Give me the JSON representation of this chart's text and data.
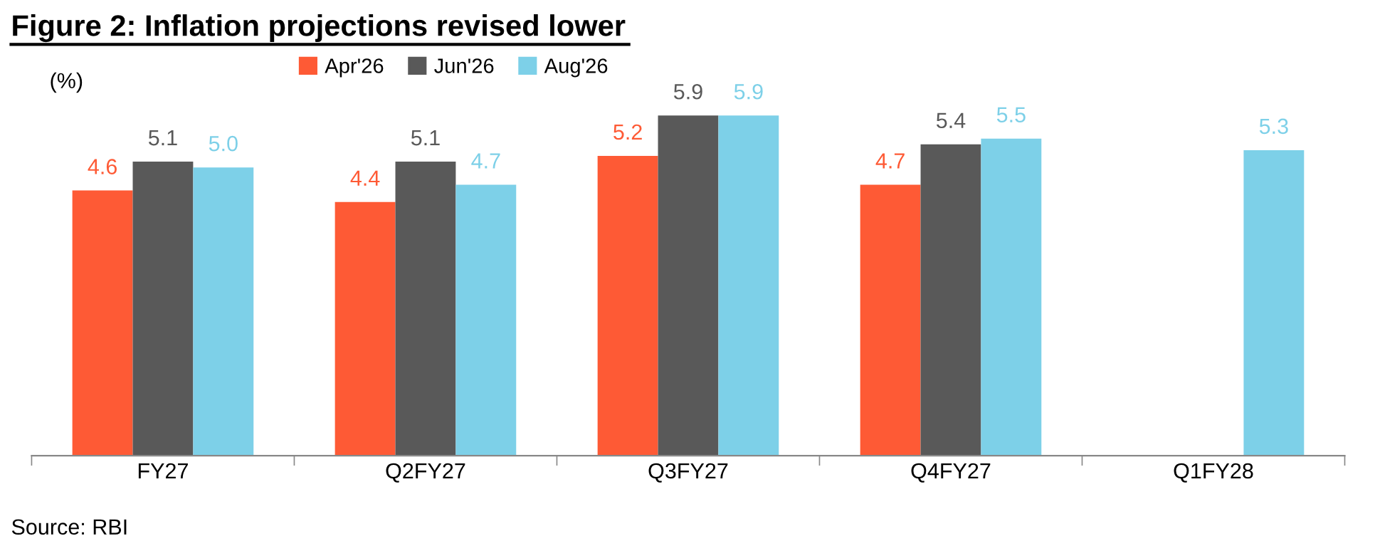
{
  "chart_data": {
    "type": "bar",
    "title": "Figure 2: Inflation projections revised lower",
    "ylabel": "(%)",
    "categories": [
      "FY27",
      "Q2FY27",
      "Q3FY27",
      "Q4FY27",
      "Q1FY28"
    ],
    "series": [
      {
        "name": "Apr'26",
        "color": "#fe5a35",
        "values": [
          4.6,
          4.4,
          5.2,
          4.7,
          null
        ],
        "value_labels": [
          "4.6",
          "4.4",
          "5.2",
          "4.7",
          null
        ]
      },
      {
        "name": "Jun'26",
        "color": "#595959",
        "values": [
          5.1,
          5.1,
          5.9,
          5.4,
          null
        ],
        "value_labels": [
          "5.1",
          "5.1",
          "5.9",
          "5.4",
          null
        ]
      },
      {
        "name": "Aug'26",
        "color": "#7dd0e8",
        "values": [
          5.0,
          4.7,
          5.9,
          5.5,
          5.3
        ],
        "value_labels": [
          "5.0",
          "4.7",
          "5.9",
          "5.5",
          "5.3"
        ]
      }
    ],
    "legend": "top",
    "grid": false,
    "annotations": [
      "Source: RBI"
    ]
  }
}
